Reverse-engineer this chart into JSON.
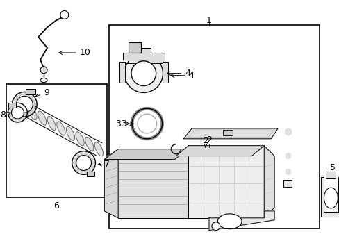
{
  "bg_color": "#ffffff",
  "line_color": "#000000",
  "fig_width": 4.89,
  "fig_height": 3.6,
  "dpi": 100,
  "font_size": 9
}
